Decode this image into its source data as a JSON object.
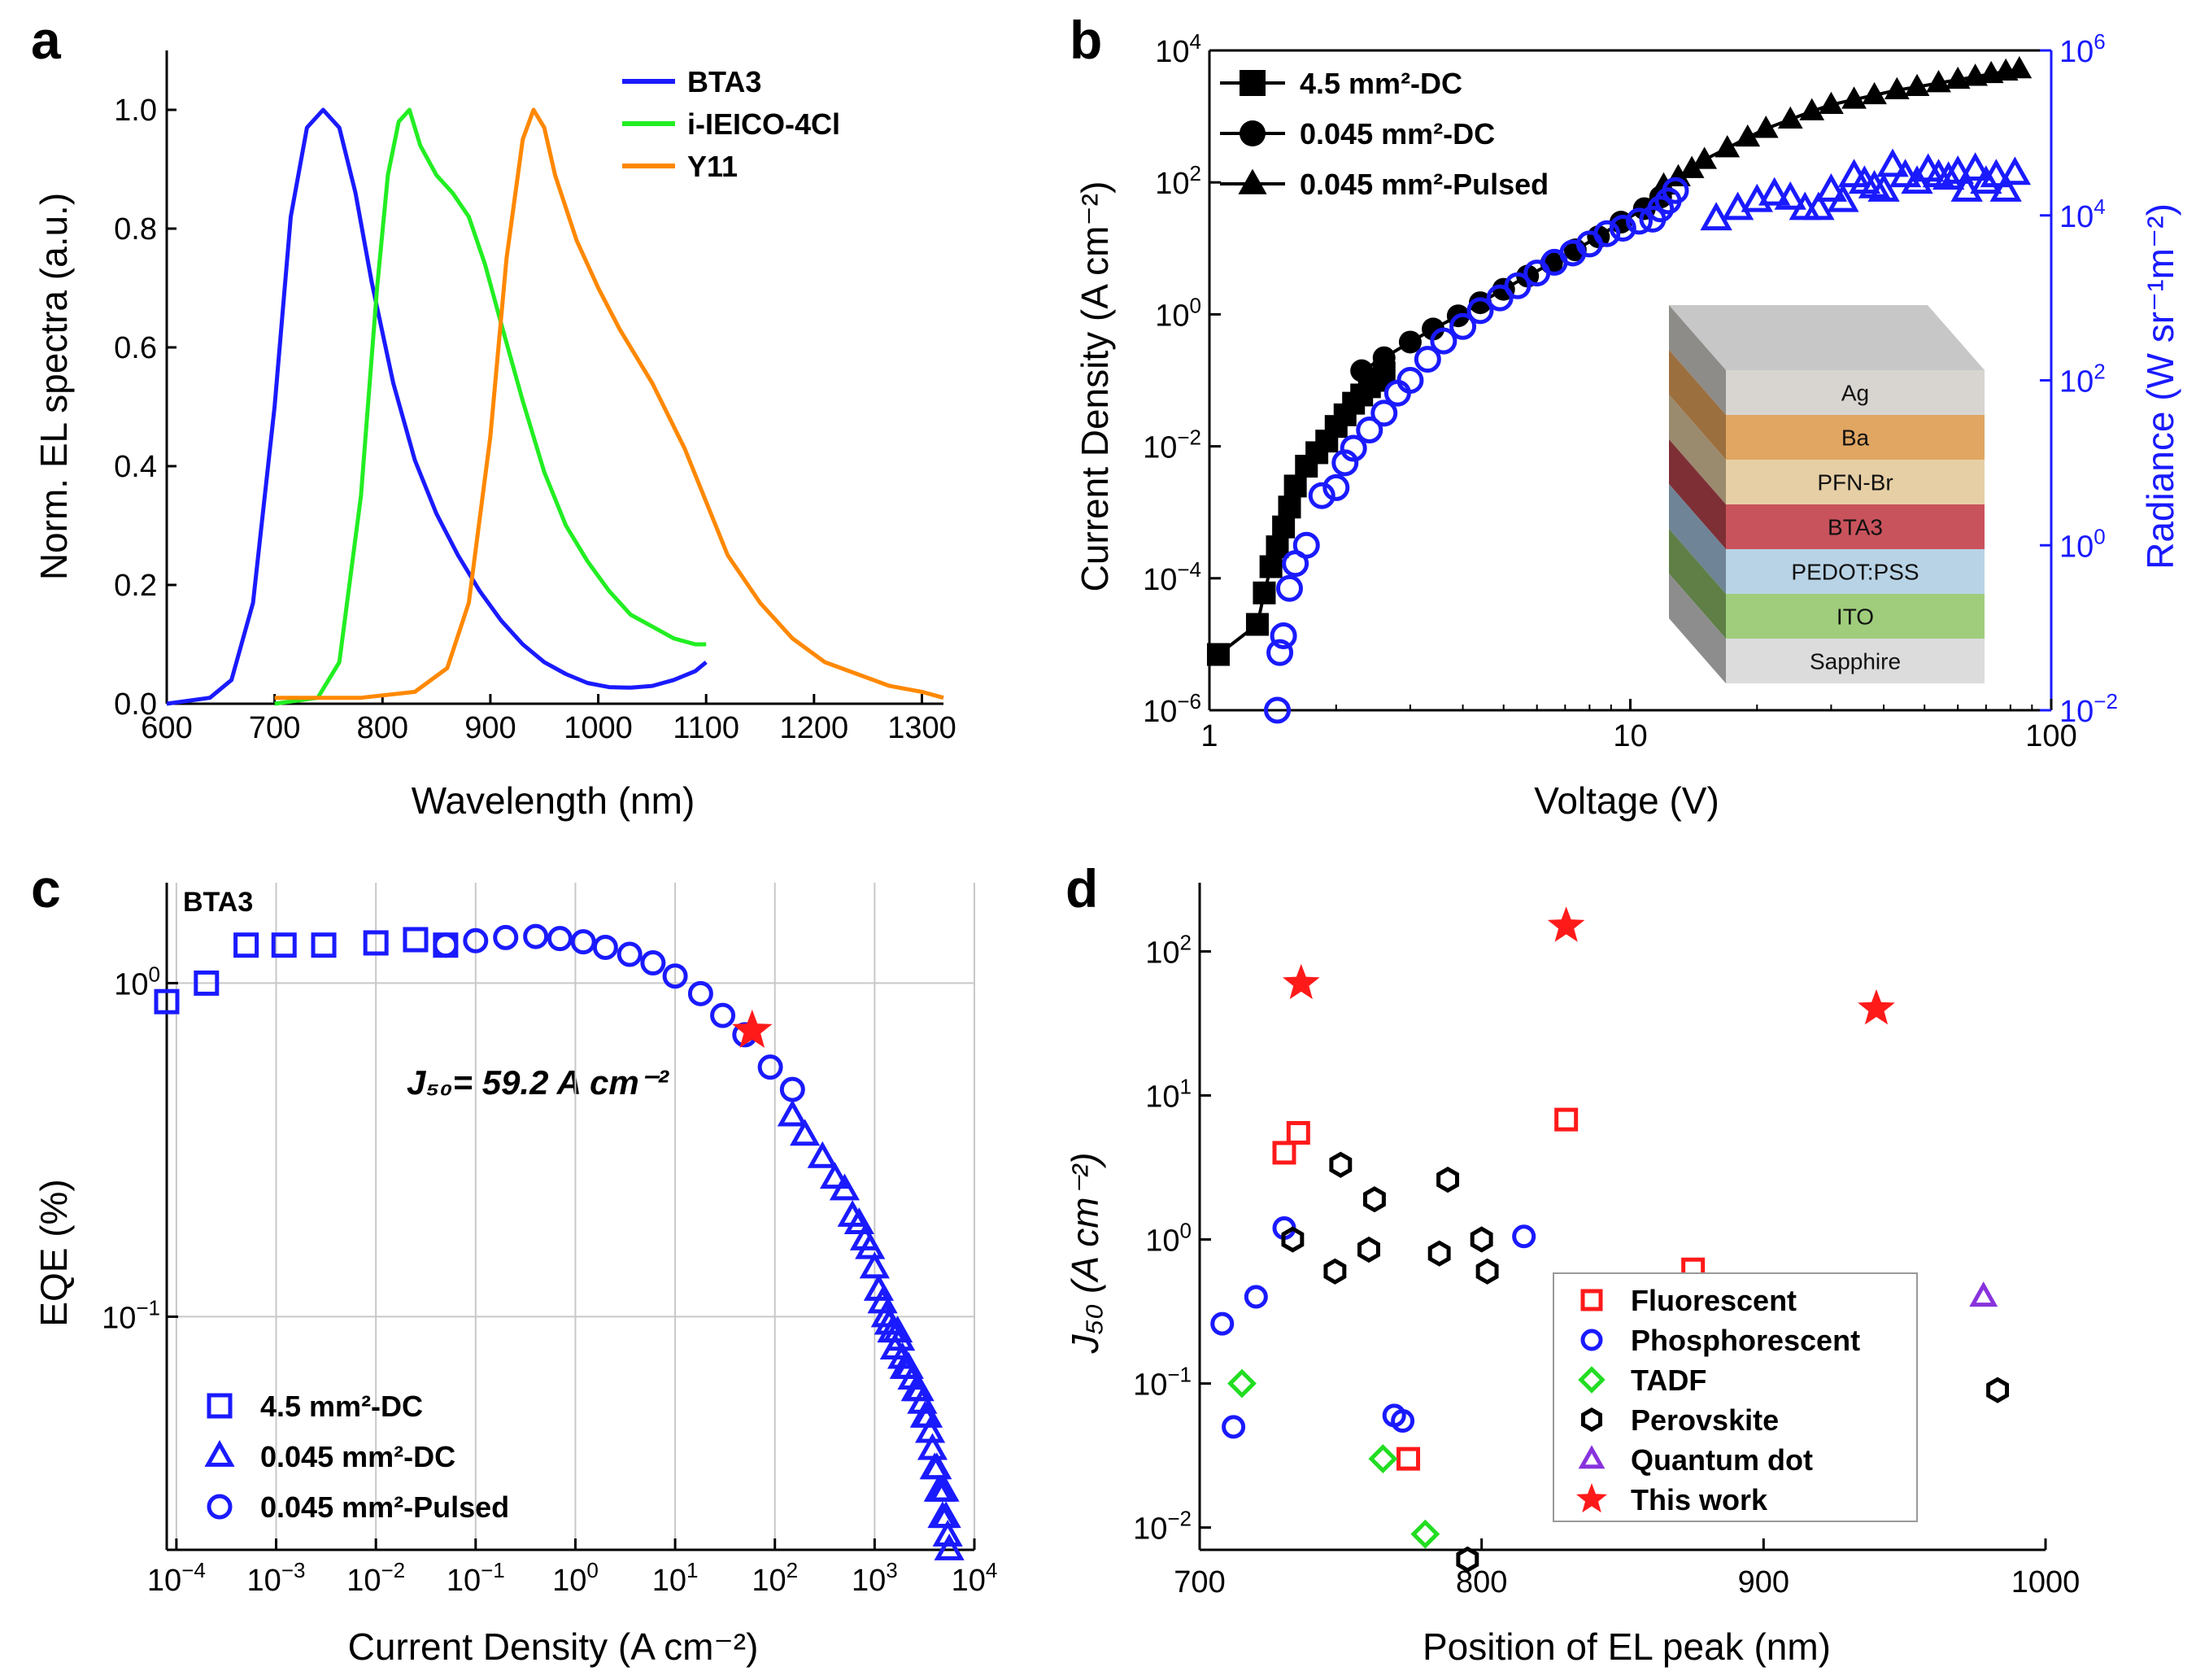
{
  "panels": {
    "a": {
      "label": "a"
    },
    "b": {
      "label": "b"
    },
    "c": {
      "label": "c"
    },
    "d": {
      "label": "d"
    }
  },
  "chart_data": [
    {
      "id": "a",
      "type": "line",
      "xlabel": "Wavelength (nm)",
      "ylabel": "Norm. EL spectra (a.u.)",
      "xlim": [
        600,
        1320
      ],
      "ylim": [
        0,
        1.1
      ],
      "xticks": [
        600,
        700,
        800,
        900,
        1000,
        1100,
        1200,
        1300
      ],
      "yticks": [
        0.0,
        0.2,
        0.4,
        0.6,
        0.8,
        1.0
      ],
      "ytick_labels": [
        "0.0",
        "0.2",
        "0.4",
        "0.6",
        "0.8",
        "1.0"
      ],
      "legend_position": "top-right",
      "grid": false,
      "series": [
        {
          "name": "BTA3",
          "color": "#1a1aff",
          "x": [
            600,
            640,
            660,
            680,
            700,
            715,
            730,
            745,
            760,
            775,
            790,
            810,
            830,
            850,
            870,
            890,
            910,
            930,
            950,
            970,
            990,
            1010,
            1030,
            1050,
            1070,
            1090,
            1100
          ],
          "y": [
            0.0,
            0.01,
            0.04,
            0.17,
            0.5,
            0.82,
            0.97,
            1.0,
            0.97,
            0.86,
            0.71,
            0.54,
            0.41,
            0.32,
            0.25,
            0.19,
            0.14,
            0.1,
            0.07,
            0.05,
            0.035,
            0.028,
            0.027,
            0.03,
            0.04,
            0.055,
            0.07
          ]
        },
        {
          "name": "i-IEICO-4Cl",
          "color": "#22ee22",
          "x": [
            700,
            740,
            760,
            780,
            795,
            805,
            815,
            825,
            835,
            850,
            865,
            880,
            895,
            910,
            930,
            950,
            970,
            990,
            1010,
            1030,
            1050,
            1070,
            1090,
            1100
          ],
          "y": [
            0.0,
            0.01,
            0.07,
            0.35,
            0.7,
            0.89,
            0.98,
            1.0,
            0.94,
            0.89,
            0.86,
            0.82,
            0.74,
            0.64,
            0.51,
            0.39,
            0.3,
            0.24,
            0.19,
            0.15,
            0.13,
            0.11,
            0.1,
            0.1
          ]
        },
        {
          "name": "Y11",
          "color": "#ff8800",
          "x": [
            700,
            780,
            830,
            860,
            880,
            900,
            915,
            930,
            940,
            950,
            960,
            980,
            1000,
            1020,
            1050,
            1080,
            1100,
            1120,
            1150,
            1180,
            1210,
            1240,
            1270,
            1300,
            1320
          ],
          "y": [
            0.01,
            0.01,
            0.02,
            0.06,
            0.17,
            0.45,
            0.75,
            0.95,
            1.0,
            0.97,
            0.89,
            0.78,
            0.7,
            0.63,
            0.54,
            0.43,
            0.34,
            0.25,
            0.17,
            0.11,
            0.07,
            0.05,
            0.03,
            0.02,
            0.01
          ]
        }
      ]
    },
    {
      "id": "b",
      "type": "scatter",
      "xlabel": "Voltage (V)",
      "ylabel": "Current Density (A cm⁻²)",
      "ylabel2": "Radiance (W sr⁻¹m⁻²)",
      "xscale": "log",
      "yscale": "log",
      "xlim": [
        1,
        100
      ],
      "ylim": [
        1e-06,
        10000.0
      ],
      "ylim2": [
        0.01,
        1000000.0
      ],
      "xticks": [
        1,
        10,
        100
      ],
      "xtick_labels": [
        "1",
        "10",
        "100"
      ],
      "yticks": [
        -6,
        -4,
        -2,
        0,
        2,
        4
      ],
      "yticks2": [
        -2,
        0,
        2,
        4,
        6
      ],
      "legend_position": "top-left",
      "series": [
        {
          "name": "4.5 mm²-DC",
          "marker": "square",
          "color": "#000000",
          "x": [
            1.05,
            1.3,
            1.35,
            1.4,
            1.45,
            1.5,
            1.55,
            1.6,
            1.7,
            1.8,
            1.9,
            2.0,
            2.1,
            2.2,
            2.3,
            2.4,
            2.5,
            2.6
          ],
          "y": [
            7e-06,
            2e-05,
            6e-05,
            0.00015,
            0.0003,
            0.0006,
            0.0012,
            0.0025,
            0.005,
            0.008,
            0.012,
            0.02,
            0.03,
            0.045,
            0.06,
            0.08,
            0.1,
            0.13
          ]
        },
        {
          "name": "0.045 mm²-DC",
          "marker": "circle",
          "color": "#000000",
          "x": [
            2.3,
            2.6,
            3.0,
            3.4,
            3.9,
            4.4,
            5.0,
            5.7,
            6.5,
            7.4,
            8.4,
            9.5,
            10.8,
            11.8
          ],
          "y": [
            0.14,
            0.22,
            0.38,
            0.6,
            0.95,
            1.5,
            2.4,
            3.8,
            6,
            9.5,
            15,
            25,
            40,
            60
          ]
        },
        {
          "name": "0.045 mm²-Pulsed",
          "marker": "triangle",
          "color": "#000000",
          "x": [
            12,
            13,
            14,
            15,
            17,
            19,
            21,
            24,
            27,
            30,
            34,
            38,
            43,
            48,
            54,
            60,
            66,
            72,
            78,
            84
          ],
          "y": [
            90,
            120,
            160,
            220,
            330,
            480,
            650,
            900,
            1200,
            1500,
            1800,
            2100,
            2500,
            2800,
            3200,
            3600,
            4000,
            4400,
            4800,
            5200
          ]
        },
        {
          "name": "Radiance",
          "marker": "open-circle",
          "color": "#1a1aff",
          "axis": "right",
          "x": [
            1.45,
            1.47,
            1.5,
            1.55,
            1.6,
            1.7,
            1.85,
            2.0,
            2.1,
            2.2,
            2.4,
            2.6,
            2.8,
            3.0,
            3.3,
            3.6,
            4.0,
            4.4,
            4.9,
            5.4,
            6.0,
            6.6,
            7.3,
            8.0,
            8.8,
            9.6,
            10.5,
            11.3,
            11.8,
            12.3,
            12.8
          ],
          "y": [
            0.01,
            0.05,
            0.08,
            0.3,
            0.6,
            1.0,
            4,
            5,
            10,
            15,
            25,
            40,
            70,
            100,
            180,
            300,
            450,
            700,
            1000,
            1400,
            2000,
            2700,
            3500,
            4500,
            6000,
            7000,
            8500,
            9000,
            12000,
            15000,
            20000
          ]
        },
        {
          "name": "Radiance",
          "marker": "open-triangle",
          "color": "#1a1aff",
          "axis": "right",
          "x": [
            16,
            18,
            20,
            22,
            24,
            26,
            28,
            30,
            32,
            34,
            36,
            38,
            40,
            42,
            45,
            48,
            51,
            54,
            57,
            60,
            63,
            66,
            70,
            74,
            78,
            82
          ],
          "y": [
            9000,
            12000,
            15000,
            18000,
            16000,
            12000,
            12000,
            20000,
            15000,
            30000,
            25000,
            22000,
            20000,
            40000,
            30000,
            25000,
            35000,
            30000,
            28000,
            33000,
            20000,
            36000,
            25000,
            30000,
            20000,
            32000
          ]
        }
      ],
      "inset": {
        "layers": [
          "Ag",
          "Ba",
          "PFN-Br",
          "BTA3",
          "PEDOT:PSS",
          "ITO",
          "Sapphire"
        ]
      }
    },
    {
      "id": "c",
      "type": "scatter",
      "title_label": "BTA3",
      "annotation": "J₅₀= 59.2 A cm⁻²",
      "xlabel": "Current Density (A cm⁻²)",
      "ylabel": "EQE (%)",
      "xscale": "log",
      "yscale": "log",
      "xlim": [
        8e-05,
        10000
      ],
      "ylim": [
        0.02,
        2
      ],
      "xticks": [
        -4,
        -3,
        -2,
        -1,
        0,
        1,
        2,
        3,
        4
      ],
      "yticks": [
        -1,
        0
      ],
      "grid": true,
      "legend_position": "bottom-left",
      "series": [
        {
          "name": "4.5 mm²-DC",
          "marker": "open-square",
          "color": "#1a1aff",
          "x": [
            8e-05,
            0.0002,
            0.0005,
            0.0012,
            0.003,
            0.01,
            0.025,
            0.05
          ],
          "y": [
            0.88,
            1.0,
            1.3,
            1.3,
            1.3,
            1.32,
            1.35,
            1.3
          ]
        },
        {
          "name": "0.045 mm²-DC",
          "marker": "open-triangle",
          "color": "#1a1aff",
          "x": [
            150,
            200,
            300,
            400,
            500,
            600,
            700,
            800,
            900,
            1000,
            1100,
            1200,
            1300,
            1400,
            1500,
            1600,
            1700,
            1800,
            1900,
            2000,
            2200,
            2400,
            2600,
            2800,
            3000,
            3200,
            3400,
            3600,
            3800,
            4000,
            4200,
            4400,
            4600,
            4800,
            5000,
            5200,
            5400,
            5600
          ],
          "y": [
            0.4,
            0.35,
            0.3,
            0.26,
            0.24,
            0.2,
            0.19,
            0.17,
            0.16,
            0.14,
            0.12,
            0.11,
            0.1,
            0.095,
            0.09,
            0.08,
            0.09,
            0.085,
            0.075,
            0.07,
            0.07,
            0.065,
            0.06,
            0.06,
            0.055,
            0.05,
            0.05,
            0.045,
            0.04,
            0.035,
            0.035,
            0.03,
            0.03,
            0.025,
            0.03,
            0.025,
            0.022,
            0.02
          ]
        },
        {
          "name": "0.045 mm²-Pulsed",
          "marker": "open-circle",
          "color": "#1a1aff",
          "x": [
            0.05,
            0.1,
            0.2,
            0.4,
            0.7,
            1.2,
            2,
            3.5,
            6,
            10,
            18,
            30,
            50,
            90,
            150
          ],
          "y": [
            1.3,
            1.34,
            1.37,
            1.38,
            1.36,
            1.33,
            1.28,
            1.22,
            1.15,
            1.05,
            0.93,
            0.8,
            0.7,
            0.56,
            0.48
          ]
        },
        {
          "name": "J50",
          "marker": "star",
          "color": "#ff1a1a",
          "x": [
            59.2
          ],
          "y": [
            0.72
          ]
        }
      ]
    },
    {
      "id": "d",
      "type": "scatter",
      "xlabel": "Position of EL peak (nm)",
      "ylabel": "J₅₀ (A cm⁻²)",
      "yscale": "log",
      "xlim": [
        700,
        1000
      ],
      "ylim": [
        0.007,
        300
      ],
      "xticks": [
        700,
        800,
        900,
        1000
      ],
      "yticks": [
        -2,
        -1,
        0,
        1,
        2
      ],
      "legend_position": "bottom-right",
      "series": [
        {
          "name": "Fluorescent",
          "marker": "open-square",
          "color": "#ff1a1a",
          "x": [
            730,
            735,
            774,
            830,
            875
          ],
          "y": [
            4.0,
            5.5,
            0.03,
            6.8,
            0.62
          ]
        },
        {
          "name": "Phosphorescent",
          "marker": "open-circle",
          "color": "#1a1aff",
          "x": [
            708,
            712,
            720,
            730,
            769,
            772,
            815
          ],
          "y": [
            0.26,
            0.05,
            0.4,
            1.2,
            0.06,
            0.055,
            1.05
          ]
        },
        {
          "name": "TADF",
          "marker": "open-diamond",
          "color": "#22dd22",
          "x": [
            715,
            765,
            780
          ],
          "y": [
            0.1,
            0.03,
            0.009
          ]
        },
        {
          "name": "Perovskite",
          "marker": "open-hexagon",
          "color": "#000000",
          "x": [
            733,
            748,
            750,
            760,
            762,
            785,
            788,
            795,
            800,
            802,
            983
          ],
          "y": [
            1.0,
            0.6,
            3.3,
            0.85,
            1.9,
            0.8,
            2.6,
            0.006,
            1.0,
            0.6,
            0.09
          ]
        },
        {
          "name": "Quantum dot",
          "marker": "open-triangle",
          "color": "#8833dd",
          "x": [
            978
          ],
          "y": [
            0.4
          ]
        },
        {
          "name": "This work",
          "marker": "star",
          "color": "#ff1a1a",
          "x": [
            736,
            830,
            940
          ],
          "y": [
            60,
            150,
            40
          ]
        }
      ]
    }
  ]
}
